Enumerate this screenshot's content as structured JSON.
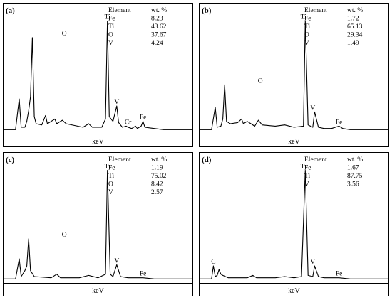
{
  "chart_data": [
    {
      "type": "line",
      "panel_label": "(a)",
      "xlabel": "keV",
      "ylabel": "",
      "table": {
        "header": [
          "Element",
          "wt. %"
        ],
        "rows": [
          [
            "Fe",
            "8.23"
          ],
          [
            "Ti",
            "43.62"
          ],
          [
            "O",
            "37.67"
          ],
          [
            "V",
            "4.24"
          ]
        ]
      },
      "peaks": [
        {
          "label": "O",
          "x": 0.32,
          "y": 0.79
        },
        {
          "label": "Ti",
          "x": 0.55,
          "y": 0.93
        },
        {
          "label": "V",
          "x": 0.6,
          "y": 0.21
        },
        {
          "label": "Cr",
          "x": 0.66,
          "y": 0.04
        },
        {
          "label": "Fe",
          "x": 0.74,
          "y": 0.08
        }
      ],
      "spectrum": [
        [
          0,
          0.01
        ],
        [
          0.06,
          0.01
        ],
        [
          0.08,
          0.27
        ],
        [
          0.09,
          0.03
        ],
        [
          0.11,
          0.03
        ],
        [
          0.12,
          0.08
        ],
        [
          0.13,
          0.17
        ],
        [
          0.14,
          0.29
        ],
        [
          0.15,
          0.79
        ],
        [
          0.16,
          0.12
        ],
        [
          0.17,
          0.06
        ],
        [
          0.2,
          0.05
        ],
        [
          0.22,
          0.13
        ],
        [
          0.23,
          0.06
        ],
        [
          0.25,
          0.08
        ],
        [
          0.27,
          0.1
        ],
        [
          0.28,
          0.06
        ],
        [
          0.31,
          0.09
        ],
        [
          0.33,
          0.06
        ],
        [
          0.42,
          0.03
        ],
        [
          0.45,
          0.06
        ],
        [
          0.47,
          0.03
        ],
        [
          0.52,
          0.03
        ],
        [
          0.54,
          0.1
        ],
        [
          0.55,
          0.93
        ],
        [
          0.56,
          0.12
        ],
        [
          0.58,
          0.08
        ],
        [
          0.6,
          0.21
        ],
        [
          0.61,
          0.07
        ],
        [
          0.63,
          0.03
        ],
        [
          0.65,
          0.04
        ],
        [
          0.66,
          0.03
        ],
        [
          0.68,
          0.02
        ],
        [
          0.7,
          0.04
        ],
        [
          0.71,
          0.02
        ],
        [
          0.73,
          0.04
        ],
        [
          0.74,
          0.08
        ],
        [
          0.75,
          0.03
        ],
        [
          0.8,
          0.02
        ],
        [
          0.85,
          0.01
        ],
        [
          1,
          0.01
        ]
      ]
    },
    {
      "type": "line",
      "panel_label": "(b)",
      "xlabel": "keV",
      "ylabel": "",
      "table": {
        "header": [
          "Element",
          "wt. %"
        ],
        "rows": [
          [
            "Fe",
            "1.72"
          ],
          [
            "Ti",
            "65.13"
          ],
          [
            "O",
            "29.34"
          ],
          [
            "V",
            "1.49"
          ]
        ]
      },
      "peaks": [
        {
          "label": "O",
          "x": 0.32,
          "y": 0.39
        },
        {
          "label": "Ti",
          "x": 0.55,
          "y": 0.93
        },
        {
          "label": "V",
          "x": 0.6,
          "y": 0.16
        },
        {
          "label": "Fe",
          "x": 0.74,
          "y": 0.04
        }
      ],
      "spectrum": [
        [
          0,
          0.01
        ],
        [
          0.06,
          0.01
        ],
        [
          0.08,
          0.2
        ],
        [
          0.09,
          0.03
        ],
        [
          0.11,
          0.04
        ],
        [
          0.12,
          0.1
        ],
        [
          0.13,
          0.39
        ],
        [
          0.14,
          0.08
        ],
        [
          0.16,
          0.06
        ],
        [
          0.2,
          0.07
        ],
        [
          0.22,
          0.1
        ],
        [
          0.23,
          0.06
        ],
        [
          0.25,
          0.08
        ],
        [
          0.27,
          0.06
        ],
        [
          0.29,
          0.04
        ],
        [
          0.31,
          0.09
        ],
        [
          0.33,
          0.05
        ],
        [
          0.4,
          0.04
        ],
        [
          0.45,
          0.05
        ],
        [
          0.5,
          0.03
        ],
        [
          0.55,
          0.04
        ],
        [
          0.56,
          0.93
        ],
        [
          0.575,
          0.05
        ],
        [
          0.6,
          0.03
        ],
        [
          0.61,
          0.16
        ],
        [
          0.63,
          0.03
        ],
        [
          0.66,
          0.02
        ],
        [
          0.7,
          0.02
        ],
        [
          0.74,
          0.04
        ],
        [
          0.76,
          0.02
        ],
        [
          0.8,
          0.01
        ],
        [
          1,
          0.01
        ]
      ]
    },
    {
      "type": "line",
      "panel_label": "(c)",
      "xlabel": "keV",
      "ylabel": "",
      "table": {
        "header": [
          "Element",
          "wt. %"
        ],
        "rows": [
          [
            "Fe",
            "1.19"
          ],
          [
            "Ti",
            "75.02"
          ],
          [
            "O",
            "8.42"
          ],
          [
            "V",
            "2.57"
          ]
        ]
      },
      "peaks": [
        {
          "label": "O",
          "x": 0.32,
          "y": 0.35
        },
        {
          "label": "Ti",
          "x": 0.55,
          "y": 0.93
        },
        {
          "label": "V",
          "x": 0.6,
          "y": 0.13
        },
        {
          "label": "Fe",
          "x": 0.74,
          "y": 0.02
        }
      ],
      "spectrum": [
        [
          0,
          0.01
        ],
        [
          0.06,
          0.01
        ],
        [
          0.08,
          0.18
        ],
        [
          0.09,
          0.03
        ],
        [
          0.11,
          0.08
        ],
        [
          0.12,
          0.12
        ],
        [
          0.13,
          0.35
        ],
        [
          0.14,
          0.08
        ],
        [
          0.16,
          0.03
        ],
        [
          0.25,
          0.02
        ],
        [
          0.28,
          0.05
        ],
        [
          0.3,
          0.02
        ],
        [
          0.4,
          0.02
        ],
        [
          0.45,
          0.04
        ],
        [
          0.5,
          0.02
        ],
        [
          0.54,
          0.05
        ],
        [
          0.55,
          0.93
        ],
        [
          0.565,
          0.05
        ],
        [
          0.58,
          0.03
        ],
        [
          0.6,
          0.13
        ],
        [
          0.62,
          0.03
        ],
        [
          0.66,
          0.02
        ],
        [
          0.74,
          0.02
        ],
        [
          0.8,
          0.01
        ],
        [
          1,
          0.01
        ]
      ]
    },
    {
      "type": "line",
      "panel_label": "(d)",
      "xlabel": "keV",
      "ylabel": "",
      "table": {
        "header": [
          "Element",
          "wt. %"
        ],
        "rows": [
          [
            "Fe",
            "1.67"
          ],
          [
            "Ti",
            "87.75"
          ],
          [
            "V",
            "3.56"
          ]
        ]
      },
      "peaks": [
        {
          "label": "C",
          "x": 0.07,
          "y": 0.12
        },
        {
          "label": "Ti",
          "x": 0.55,
          "y": 0.93
        },
        {
          "label": "V",
          "x": 0.6,
          "y": 0.12
        },
        {
          "label": "Fe",
          "x": 0.74,
          "y": 0.02
        }
      ],
      "spectrum": [
        [
          0,
          0.01
        ],
        [
          0.06,
          0.01
        ],
        [
          0.07,
          0.12
        ],
        [
          0.08,
          0.03
        ],
        [
          0.09,
          0.04
        ],
        [
          0.1,
          0.09
        ],
        [
          0.11,
          0.05
        ],
        [
          0.12,
          0.04
        ],
        [
          0.15,
          0.02
        ],
        [
          0.25,
          0.02
        ],
        [
          0.28,
          0.04
        ],
        [
          0.3,
          0.02
        ],
        [
          0.4,
          0.02
        ],
        [
          0.45,
          0.03
        ],
        [
          0.5,
          0.02
        ],
        [
          0.54,
          0.03
        ],
        [
          0.56,
          0.93
        ],
        [
          0.575,
          0.04
        ],
        [
          0.6,
          0.03
        ],
        [
          0.61,
          0.12
        ],
        [
          0.63,
          0.03
        ],
        [
          0.66,
          0.02
        ],
        [
          0.74,
          0.02
        ],
        [
          0.8,
          0.01
        ],
        [
          1,
          0.01
        ]
      ]
    }
  ]
}
